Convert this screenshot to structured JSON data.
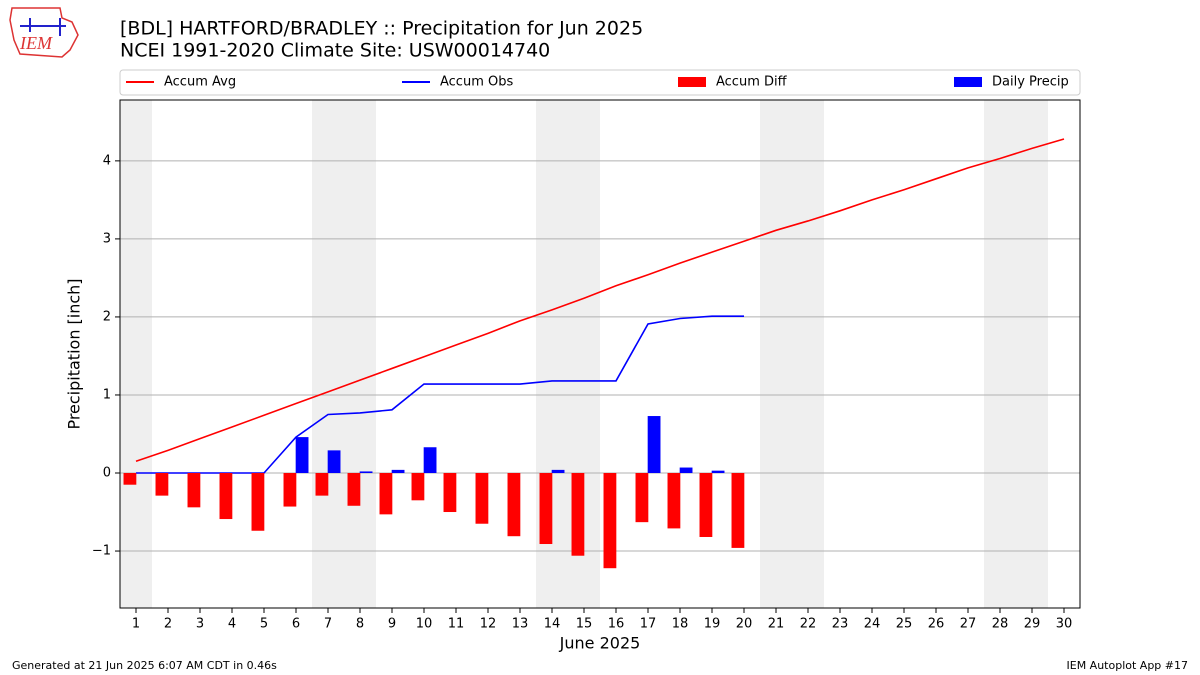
{
  "chart_data": {
    "type": "line",
    "title": "[BDL] HARTFORD/BRADLEY :: Precipitation for Jun 2025",
    "subtitle": "NCEI 1991-2020 Climate Site: USW00014740",
    "x_label": "June 2025",
    "y_label": "Precipitation [inch]",
    "footer_left": "Generated at 21 Jun 2025 6:07 AM CDT in 0.46s",
    "footer_right": "IEM Autoplot App #17",
    "logo_text": "IEM",
    "x": [
      1,
      2,
      3,
      4,
      5,
      6,
      7,
      8,
      9,
      10,
      11,
      12,
      13,
      14,
      15,
      16,
      17,
      18,
      19,
      20,
      21,
      22,
      23,
      24,
      25,
      26,
      27,
      28,
      29,
      30
    ],
    "xlim": [
      0.5,
      30.5
    ],
    "xticks": [
      1,
      2,
      3,
      4,
      5,
      6,
      7,
      8,
      9,
      10,
      11,
      12,
      13,
      14,
      15,
      16,
      17,
      18,
      19,
      20,
      21,
      22,
      23,
      24,
      25,
      26,
      27,
      28,
      29,
      30
    ],
    "ylim": [
      -1.73,
      4.78
    ],
    "yticks": [
      {
        "value": -1,
        "label": "−1"
      },
      0,
      1,
      2,
      3,
      4
    ],
    "grid": true,
    "series": [
      {
        "name": "Accum Avg",
        "type": "line",
        "color": "#ff0000",
        "values": [
          0.15,
          0.29,
          0.44,
          0.59,
          0.74,
          0.89,
          1.04,
          1.19,
          1.34,
          1.49,
          1.64,
          1.79,
          1.95,
          2.09,
          2.24,
          2.4,
          2.54,
          2.69,
          2.83,
          2.97,
          3.11,
          3.23,
          3.36,
          3.5,
          3.63,
          3.77,
          3.91,
          4.03,
          4.16,
          4.28
        ]
      },
      {
        "name": "Accum Obs",
        "type": "line",
        "color": "#0000ff",
        "values": [
          0,
          0,
          0,
          0,
          0,
          0.46,
          0.75,
          0.77,
          0.81,
          1.14,
          1.14,
          1.14,
          1.14,
          1.18,
          1.18,
          1.18,
          1.91,
          1.98,
          2.01,
          2.01,
          null,
          null,
          null,
          null,
          null,
          null,
          null,
          null,
          null,
          null
        ]
      },
      {
        "name": "Accum Diff",
        "type": "bar",
        "color": "#ff0000",
        "values": [
          -0.15,
          -0.29,
          -0.44,
          -0.59,
          -0.74,
          -0.43,
          -0.29,
          -0.42,
          -0.53,
          -0.35,
          -0.5,
          -0.65,
          -0.81,
          -0.91,
          -1.06,
          -1.22,
          -0.63,
          -0.71,
          -0.82,
          -0.96,
          null,
          null,
          null,
          null,
          null,
          null,
          null,
          null,
          null,
          null
        ]
      },
      {
        "name": "Daily Precip",
        "type": "bar",
        "color": "#0000ff",
        "values": [
          0,
          0,
          0,
          0,
          0,
          0.46,
          0.29,
          0.02,
          0.04,
          0.33,
          0,
          0,
          0,
          0.04,
          0,
          0,
          0.73,
          0.07,
          0.03,
          0,
          null,
          null,
          null,
          null,
          null,
          null,
          null,
          null,
          null,
          null
        ]
      }
    ]
  }
}
